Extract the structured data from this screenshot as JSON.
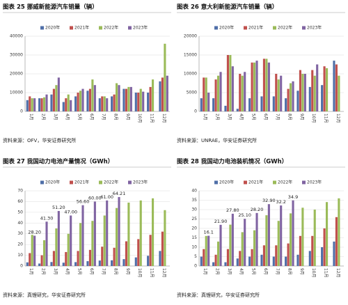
{
  "chart_data": [
    {
      "type": "bar",
      "title": "图表 25 挪威新能源汽车销量（辆）",
      "source": "资料来源：OFV，华安证券研究所",
      "categories": [
        "1月",
        "2月",
        "3月",
        "4月",
        "5月",
        "6月",
        "7月",
        "8月",
        "9月",
        "10月",
        "11月",
        "12月"
      ],
      "series": [
        {
          "name": "2020年",
          "color": "#4f6fa8",
          "values": [
            6000,
            7000,
            9000,
            5000,
            8000,
            11000,
            7000,
            8000,
            12000,
            10000,
            10000,
            16000
          ]
        },
        {
          "name": "2021年",
          "color": "#c0504d",
          "values": [
            8000,
            7000,
            12000,
            7000,
            10000,
            12000,
            8000,
            9000,
            12000,
            10000,
            13000,
            18000
          ]
        },
        {
          "name": "2022年",
          "color": "#9bbb59",
          "values": [
            7000,
            7500,
            14000,
            9000,
            11000,
            17000,
            8000,
            15000,
            13000,
            12000,
            17000,
            36000
          ]
        },
        {
          "name": "2023年",
          "color": "#8064a2",
          "values": [
            7000,
            9000,
            18000,
            6000,
            12000,
            14000,
            7000,
            14000,
            13000,
            10500,
            null,
            19000
          ]
        }
      ],
      "ylim": [
        0,
        40000
      ],
      "yticks": [
        0,
        10000,
        20000,
        30000,
        40000
      ],
      "legend": "top"
    },
    {
      "type": "bar",
      "title": "图表 26 意大利新能源汽车销量（辆）",
      "source": "资料来源：UNRAE，华安证券研究所",
      "categories": [
        "1月",
        "2月",
        "3月",
        "4月",
        "5月",
        "6月",
        "7月",
        "8月",
        "9月",
        "10月",
        "11月",
        "12月"
      ],
      "series": [
        {
          "name": "2020年",
          "color": "#4f6fa8",
          "values": [
            3500,
            3500,
            1500,
            700,
            3500,
            4000,
            4000,
            3500,
            5500,
            6500,
            7000,
            13500
          ]
        },
        {
          "name": "2021年",
          "color": "#c0504d",
          "values": [
            9000,
            8500,
            15000,
            10000,
            13000,
            14000,
            10000,
            6000,
            11000,
            11000,
            12000,
            12500
          ]
        },
        {
          "name": "2022年",
          "color": "#9bbb59",
          "values": [
            9000,
            9500,
            15000,
            9500,
            13000,
            14000,
            8500,
            7500,
            10000,
            9500,
            11500,
            9500
          ]
        },
        {
          "name": "2023年",
          "color": "#8064a2",
          "values": [
            5000,
            10500,
            12000,
            10500,
            13500,
            13000,
            9500,
            8000,
            10000,
            12500,
            null,
            null
          ]
        }
      ],
      "ylim": [
        0,
        20000
      ],
      "yticks": [
        0,
        5000,
        10000,
        15000,
        20000
      ],
      "legend": "top"
    },
    {
      "type": "bar",
      "title": "图表 27 我国动力电池产量情况（GWh）",
      "source": "资料来源：真锂研究，华安证券研究所",
      "categories": [
        "1月",
        "2月",
        "3月",
        "4月",
        "5月",
        "6月",
        "7月",
        "8月",
        "9月",
        "10月",
        "11月",
        "12月"
      ],
      "series": [
        {
          "name": "2020年",
          "color": "#4f6fa8",
          "values": [
            3.4,
            2.3,
            3.7,
            3.1,
            3.6,
            4.5,
            5.1,
            5.3,
            6.4,
            8,
            9.5,
            14
          ]
        },
        {
          "name": "2021年",
          "color": "#c0504d",
          "values": [
            12,
            10,
            14,
            13,
            14,
            15,
            18,
            17,
            23,
            25,
            29,
            32
          ]
        },
        {
          "name": "2022年",
          "color": "#9bbb59",
          "values": [
            29,
            24,
            35,
            30,
            40,
            42,
            47,
            54,
            59,
            61,
            63,
            52
          ]
        },
        {
          "name": "2023年",
          "color": "#8064a2",
          "values": [
            28.2,
            41.3,
            51.2,
            47,
            56.6,
            60,
            61,
            64.21,
            null,
            null,
            null,
            null
          ],
          "value_labels": [
            "28.20",
            "41.30",
            "51.20",
            "47.00",
            "56.60",
            "60.00",
            "61.00",
            "64.21",
            null,
            null,
            null,
            null
          ]
        }
      ],
      "ylim": [
        0,
        70
      ],
      "yticks": [
        0,
        10,
        20,
        30,
        40,
        50,
        60,
        70
      ],
      "legend": "top"
    },
    {
      "type": "bar",
      "title": "图表 28 我国动力电池装机情况（GWh）",
      "source": "资料来源：真锂研究，华安证券研究所",
      "categories": [
        "1月",
        "2月",
        "3月",
        "4月",
        "5月",
        "6月",
        "7月",
        "8月",
        "9月",
        "10月",
        "11月",
        "12月"
      ],
      "series": [
        {
          "name": "2020年",
          "color": "#4f6fa8",
          "values": [
            5,
            2,
            2,
            4,
            5,
            6,
            5,
            5,
            6,
            8,
            10,
            13
          ]
        },
        {
          "name": "2021年",
          "color": "#c0504d",
          "values": [
            9,
            6,
            9,
            8,
            9,
            11,
            11,
            12,
            16,
            16,
            20,
            26
          ]
        },
        {
          "name": "2022年",
          "color": "#9bbb59",
          "values": [
            16,
            13,
            22,
            18,
            19,
            27,
            24,
            28,
            31,
            30,
            34,
            36
          ]
        },
        {
          "name": "2023年",
          "color": "#8064a2",
          "values": [
            16.1,
            21.9,
            27.8,
            25.1,
            28.2,
            32.9,
            32.2,
            34.9,
            null,
            null,
            null,
            null
          ],
          "value_labels": [
            "16.1",
            "21.90",
            "27.80",
            "25.10",
            "28.20",
            "32.90",
            "32.2",
            "34.9",
            null,
            null,
            null,
            null
          ]
        }
      ],
      "ylim": [
        0,
        40
      ],
      "yticks": [
        0,
        5,
        10,
        15,
        20,
        25,
        30,
        35,
        40
      ],
      "legend": "top"
    }
  ]
}
